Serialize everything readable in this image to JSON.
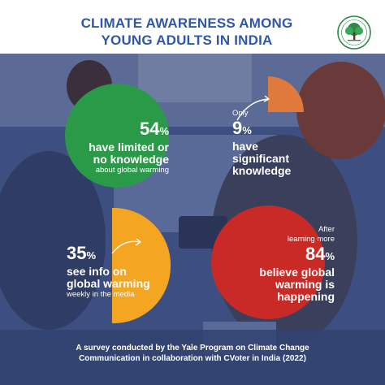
{
  "title": {
    "line1": "CLIMATE AWARENESS AMONG",
    "line2": "YOUNG ADULTS IN INDIA"
  },
  "logo": {
    "icon": "tree-logo-icon"
  },
  "stats": {
    "limited": {
      "value": "54",
      "unit": "%",
      "line1": "have limited or",
      "line2": "no knowledge",
      "line3": "about global warming",
      "color": "#2b9a48",
      "fraction": 0.54
    },
    "significant": {
      "prefix": "Only",
      "value": "9",
      "unit": "%",
      "line1": "have",
      "line2": "significant",
      "line3": "knowledge",
      "color": "#e07a3c",
      "fraction": 0.09
    },
    "weekly": {
      "value": "35",
      "unit": "%",
      "line1": "see info on",
      "line2": "global warming",
      "line3": "weekly in the media",
      "color": "#f4a623",
      "fraction": 0.35
    },
    "believe": {
      "prefix1": "After",
      "prefix2": "learning more",
      "value": "84",
      "unit": "%",
      "line1": "believe global",
      "line2": "warming is",
      "line3": "happening",
      "color": "#c92a26",
      "fraction": 0.84
    }
  },
  "footer": {
    "line1": "A survey conducted by the Yale Program on Climate Change",
    "line2": "Communication in collaboration with CVoter in India (2022)"
  },
  "colors": {
    "title": "#2f58a8",
    "overlay": "#33467a"
  }
}
